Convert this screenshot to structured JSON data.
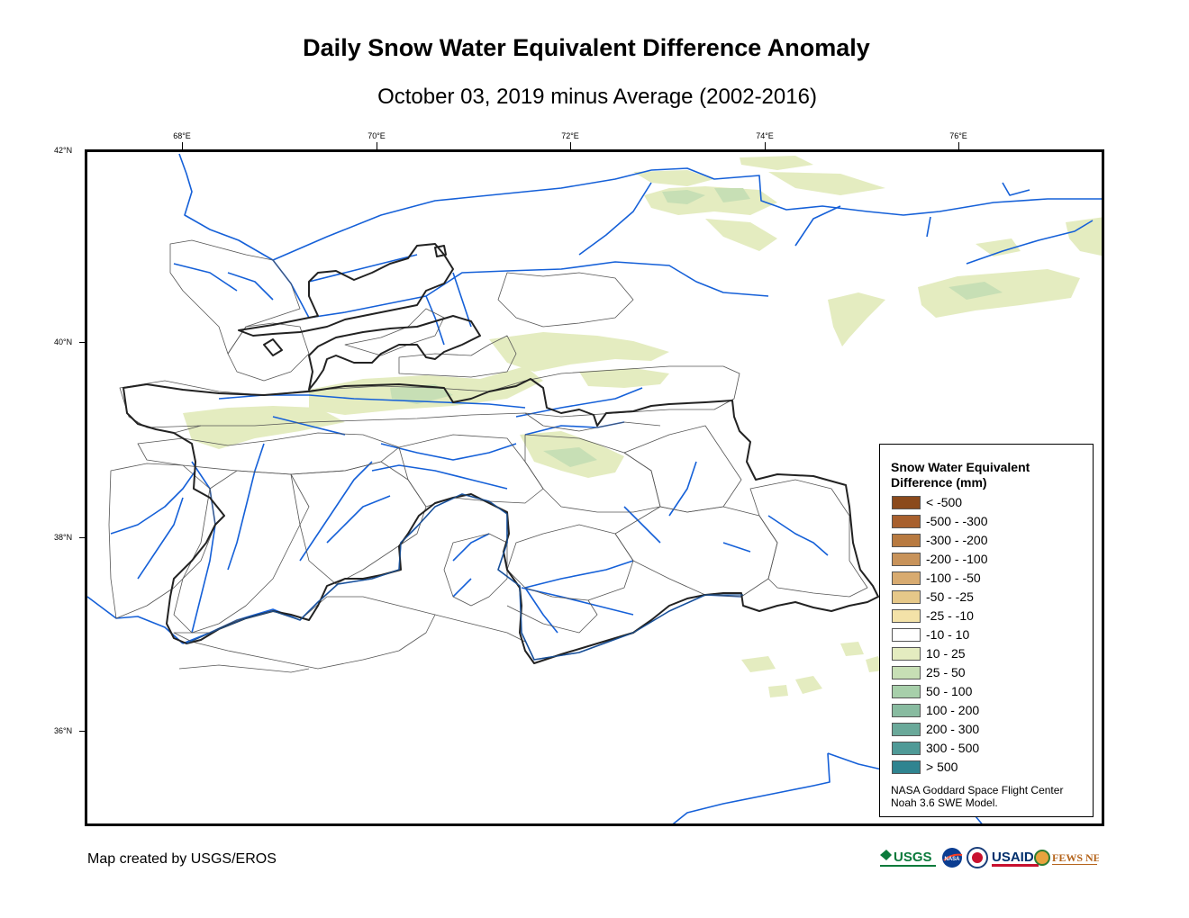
{
  "title": "Daily Snow Water Equivalent Difference Anomaly",
  "subtitle": "October 03, 2019 minus Average (2002-2016)",
  "axes": {
    "lon_ticks": [
      "68°E",
      "70°E",
      "72°E",
      "74°E",
      "76°E"
    ],
    "lat_ticks": [
      "42°N",
      "40°N",
      "38°N",
      "36°N"
    ]
  },
  "legend": {
    "title_line1": "Snow Water Equivalent",
    "title_line2": "Difference (mm)",
    "items": [
      {
        "label": "< -500",
        "color": "#8b4a1c"
      },
      {
        "label": "-500 - -300",
        "color": "#a8602e"
      },
      {
        "label": "-300 - -200",
        "color": "#b87a40"
      },
      {
        "label": "-200 - -100",
        "color": "#c8935a"
      },
      {
        "label": "-100 - -50",
        "color": "#d8ab70"
      },
      {
        "label": "-50 - -25",
        "color": "#e6c889"
      },
      {
        "label": "-25 - -10",
        "color": "#f3e2a8"
      },
      {
        "label": "-10 - 10",
        "color": "#ffffff"
      },
      {
        "label": "10 - 25",
        "color": "#e4ecc0"
      },
      {
        "label": "25 - 50",
        "color": "#c7dfb5"
      },
      {
        "label": "50 - 100",
        "color": "#a7cfaa"
      },
      {
        "label": "100 - 200",
        "color": "#88bba0"
      },
      {
        "label": "200 - 300",
        "color": "#6aa99a"
      },
      {
        "label": "300 - 500",
        "color": "#4f9a97"
      },
      {
        "label": "> 500",
        "color": "#2f8490"
      }
    ],
    "credit_line1": "NASA Goddard Space Flight Center",
    "credit_line2": "Noah 3.6 SWE Model."
  },
  "footer": "Map created by USGS/EROS",
  "logos": {
    "usgs": "USGS",
    "nasa": "NASA",
    "usaid": "USAID",
    "fewsnet": "FEWS NET"
  },
  "colors": {
    "river": "#1560d8",
    "border": "#222222",
    "basin": "#555555",
    "snow_light": "#e4ecc0",
    "snow_mid": "#c7dfb5"
  }
}
